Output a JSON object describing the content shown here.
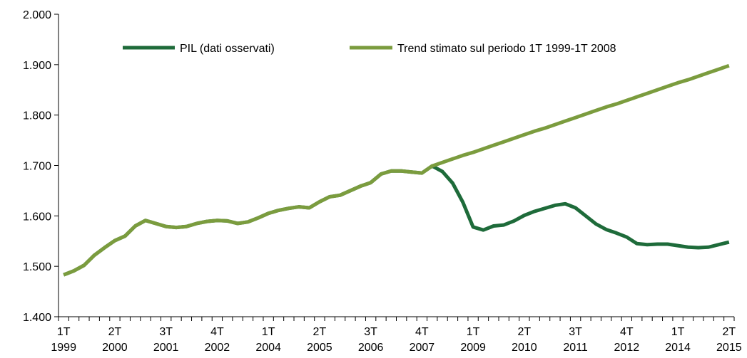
{
  "chart_data": {
    "type": "line",
    "categories": [
      "1T 1999",
      null,
      null,
      null,
      null,
      "2T 2000",
      null,
      null,
      null,
      null,
      "3T 2001",
      null,
      null,
      null,
      null,
      "4T 2002",
      null,
      null,
      null,
      null,
      "1T 2004",
      null,
      null,
      null,
      null,
      "2T 2005",
      null,
      null,
      null,
      null,
      "3T 2006",
      null,
      null,
      null,
      null,
      "4T 2007",
      null,
      null,
      null,
      null,
      "1T 2009",
      null,
      null,
      null,
      null,
      "2T 2010",
      null,
      null,
      null,
      null,
      "3T 2011",
      null,
      null,
      null,
      null,
      "4T 2012",
      null,
      null,
      null,
      null,
      "1T 2014",
      null,
      null,
      null,
      null,
      "2T 2015"
    ],
    "series": [
      {
        "name": "PIL (dati osservati)",
        "color": "#1e6b3a",
        "values": [
          1483,
          1491,
          1502,
          1522,
          1537,
          1551,
          1560,
          1580,
          1591,
          1585,
          1579,
          1577,
          1579,
          1585,
          1589,
          1591,
          1590,
          1585,
          1588,
          1596,
          1605,
          1611,
          1615,
          1618,
          1616,
          1628,
          1638,
          1641,
          1650,
          1659,
          1666,
          1683,
          1689,
          1689,
          1687,
          1685,
          1699,
          1688,
          1665,
          1627,
          1578,
          1572,
          1580,
          1582,
          1590,
          1601,
          1609,
          1615,
          1621,
          1624,
          1616,
          1600,
          1584,
          1573,
          1566,
          1558,
          1545,
          1543,
          1544,
          1544,
          1541,
          1538,
          1537,
          1538,
          1543,
          1548
        ]
      },
      {
        "name": "Trend stimato sul periodo 1T 1999-1T 2008",
        "color": "#7b9c3e",
        "values": [
          1483,
          1491,
          1502,
          1522,
          1537,
          1551,
          1560,
          1580,
          1591,
          1585,
          1579,
          1577,
          1579,
          1585,
          1589,
          1591,
          1590,
          1585,
          1588,
          1596,
          1605,
          1611,
          1615,
          1618,
          1616,
          1628,
          1638,
          1641,
          1650,
          1659,
          1666,
          1683,
          1689,
          1689,
          1687,
          1685,
          1699,
          1706,
          1713,
          1720,
          1726,
          1733,
          1740,
          1747,
          1754,
          1761,
          1768,
          1774,
          1781,
          1788,
          1795,
          1802,
          1809,
          1816,
          1822,
          1829,
          1836,
          1843,
          1850,
          1857,
          1864,
          1870,
          1877,
          1884,
          1891,
          1898
        ]
      }
    ],
    "ylim": [
      1400,
      2000
    ],
    "yticks": [
      {
        "value": 1400,
        "label": "1.400"
      },
      {
        "value": 1500,
        "label": "1.500"
      },
      {
        "value": 1600,
        "label": "1.600"
      },
      {
        "value": 1700,
        "label": "1.700"
      },
      {
        "value": 1800,
        "label": "1.800"
      },
      {
        "value": 1900,
        "label": "1.900"
      },
      {
        "value": 2000,
        "label": "2.000"
      }
    ],
    "grid": false
  }
}
